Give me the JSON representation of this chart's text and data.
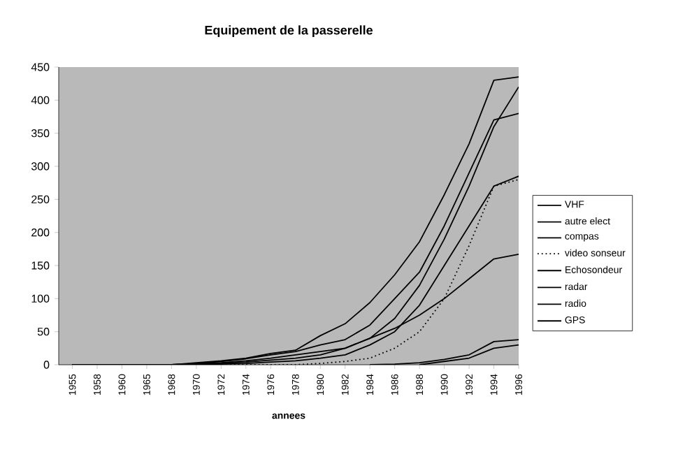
{
  "chart_data": {
    "type": "line",
    "title": "Equipement de la passerelle",
    "xlabel": "annees",
    "categories": [
      "1955",
      "1958",
      "1960",
      "1965",
      "1968",
      "1970",
      "1972",
      "1974",
      "1976",
      "1978",
      "1980",
      "1982",
      "1984",
      "1986",
      "1988",
      "1990",
      "1992",
      "1994",
      "1996"
    ],
    "ylim": [
      0,
      450
    ],
    "yticks": [
      0,
      50,
      100,
      150,
      200,
      250,
      300,
      350,
      400,
      450
    ],
    "legend": "right",
    "marker": "none",
    "grid": false,
    "series": [
      {
        "name": "VHF",
        "color": "#000000",
        "line_style": "solid",
        "values": [
          0,
          0,
          0,
          0,
          0,
          3,
          6,
          10,
          17,
          22,
          44,
          62,
          94,
          136,
          186,
          257,
          334,
          430,
          435
        ]
      },
      {
        "name": "autre elect",
        "color": "#000000",
        "line_style": "solid",
        "values": [
          0,
          0,
          0,
          0,
          0,
          2,
          5,
          9,
          15,
          20,
          30,
          38,
          60,
          100,
          140,
          210,
          290,
          370,
          380
        ]
      },
      {
        "name": "compas",
        "color": "#000000",
        "line_style": "solid",
        "values": [
          0,
          0,
          0,
          0,
          0,
          1,
          3,
          6,
          10,
          15,
          20,
          25,
          40,
          70,
          120,
          190,
          270,
          360,
          420
        ]
      },
      {
        "name": "video sonseur",
        "color": "#000000",
        "line_style": "dotted",
        "values": [
          0,
          0,
          0,
          0,
          0,
          0,
          0,
          0,
          0,
          0,
          2,
          5,
          10,
          25,
          50,
          100,
          180,
          270,
          280
        ]
      },
      {
        "name": "Echosondeur",
        "color": "#000000",
        "line_style": "solid",
        "values": [
          0,
          0,
          0,
          0,
          0,
          0,
          1,
          2,
          4,
          6,
          10,
          15,
          30,
          50,
          90,
          150,
          210,
          270,
          285
        ]
      },
      {
        "name": "radar",
        "color": "#000000",
        "line_style": "solid",
        "values": [
          0,
          0,
          0,
          0,
          0,
          1,
          2,
          4,
          7,
          10,
          15,
          25,
          40,
          55,
          75,
          100,
          130,
          160,
          167
        ]
      },
      {
        "name": "radio",
        "color": "#000000",
        "line_style": "solid",
        "values": [
          null,
          null,
          null,
          null,
          null,
          null,
          null,
          null,
          null,
          null,
          null,
          null,
          0,
          1,
          3,
          8,
          15,
          35,
          38
        ]
      },
      {
        "name": "GPS",
        "color": "#000000",
        "line_style": "solid",
        "values": [
          null,
          null,
          null,
          null,
          null,
          null,
          null,
          null,
          null,
          null,
          null,
          null,
          null,
          null,
          0,
          5,
          10,
          25,
          30
        ]
      }
    ]
  }
}
